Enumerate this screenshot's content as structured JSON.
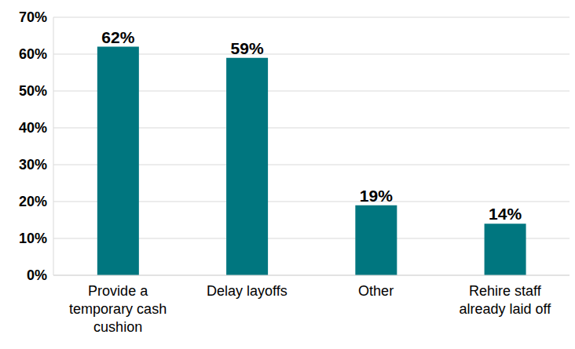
{
  "chart_data": {
    "type": "bar",
    "categories": [
      "Provide a temporary cash cushion",
      "Delay layoffs",
      "Other",
      "Rehire staff already laid off"
    ],
    "values": [
      62,
      59,
      19,
      14
    ],
    "value_labels": [
      "62%",
      "59%",
      "19%",
      "14%"
    ],
    "color": "#00767F",
    "ylim": [
      0,
      70
    ],
    "yticks": [
      {
        "value": 0,
        "label": "0%"
      },
      {
        "value": 10,
        "label": "10%"
      },
      {
        "value": 20,
        "label": "20%"
      },
      {
        "value": 30,
        "label": "30%"
      },
      {
        "value": 40,
        "label": "40%"
      },
      {
        "value": 50,
        "label": "50%"
      },
      {
        "value": 60,
        "label": "60%"
      },
      {
        "value": 70,
        "label": "70%"
      }
    ],
    "grid": true,
    "data_labels": true
  }
}
